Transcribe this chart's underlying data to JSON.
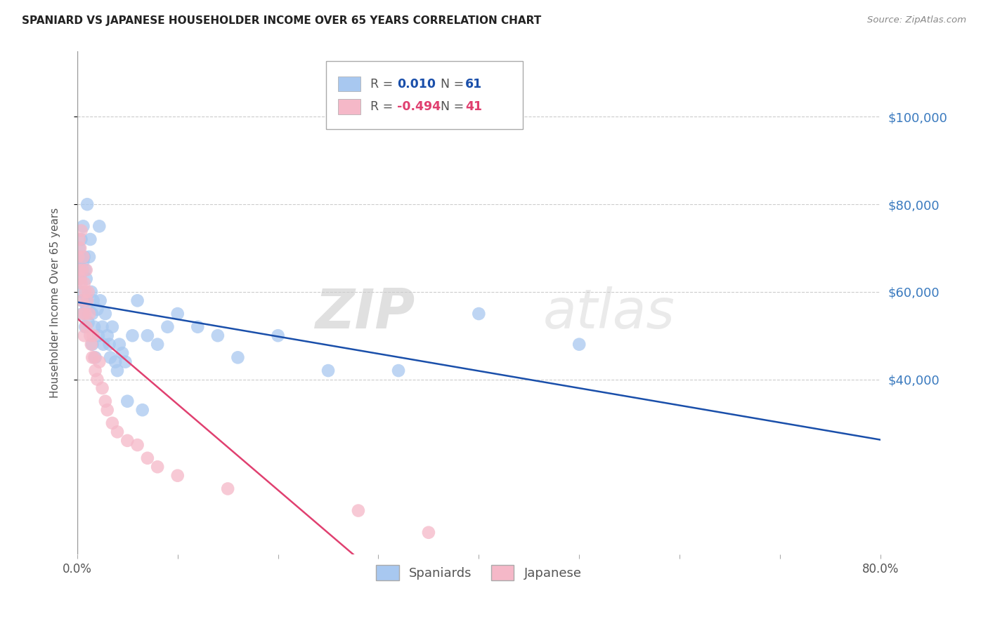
{
  "title": "SPANIARD VS JAPANESE HOUSEHOLDER INCOME OVER 65 YEARS CORRELATION CHART",
  "source": "Source: ZipAtlas.com",
  "ylabel": "Householder Income Over 65 years",
  "y_tick_labels": [
    "$40,000",
    "$60,000",
    "$80,000",
    "$100,000"
  ],
  "y_tick_values": [
    40000,
    60000,
    80000,
    100000
  ],
  "y_tick_color": "#3a7abf",
  "watermark_zip": "ZIP",
  "watermark_atlas": "atlas",
  "spaniard_color": "#a8c8f0",
  "japanese_color": "#f5b8c8",
  "trend_spaniard_color": "#1a4faa",
  "trend_japanese_color": "#e04070",
  "spaniard_x": [
    0.001,
    0.001,
    0.002,
    0.002,
    0.003,
    0.003,
    0.004,
    0.004,
    0.005,
    0.005,
    0.005,
    0.006,
    0.006,
    0.007,
    0.008,
    0.008,
    0.009,
    0.009,
    0.01,
    0.01,
    0.011,
    0.012,
    0.013,
    0.014,
    0.015,
    0.015,
    0.016,
    0.017,
    0.018,
    0.02,
    0.021,
    0.022,
    0.023,
    0.025,
    0.026,
    0.028,
    0.03,
    0.032,
    0.033,
    0.035,
    0.038,
    0.04,
    0.042,
    0.045,
    0.048,
    0.05,
    0.055,
    0.06,
    0.065,
    0.07,
    0.08,
    0.09,
    0.1,
    0.12,
    0.14,
    0.16,
    0.2,
    0.25,
    0.32,
    0.4,
    0.5
  ],
  "spaniard_y": [
    67000,
    65000,
    70000,
    66000,
    68000,
    63000,
    72000,
    60000,
    65000,
    58000,
    55000,
    75000,
    67000,
    68000,
    65000,
    52000,
    63000,
    57000,
    80000,
    58000,
    53000,
    68000,
    72000,
    60000,
    55000,
    48000,
    58000,
    52000,
    45000,
    56000,
    50000,
    75000,
    58000,
    52000,
    48000,
    55000,
    50000,
    48000,
    45000,
    52000,
    44000,
    42000,
    48000,
    46000,
    44000,
    35000,
    50000,
    58000,
    33000,
    50000,
    48000,
    52000,
    55000,
    52000,
    50000,
    45000,
    50000,
    42000,
    42000,
    55000,
    48000
  ],
  "japanese_x": [
    0.001,
    0.002,
    0.002,
    0.003,
    0.003,
    0.004,
    0.004,
    0.005,
    0.005,
    0.006,
    0.006,
    0.007,
    0.007,
    0.008,
    0.008,
    0.009,
    0.009,
    0.01,
    0.011,
    0.012,
    0.013,
    0.014,
    0.015,
    0.016,
    0.017,
    0.018,
    0.02,
    0.022,
    0.025,
    0.028,
    0.03,
    0.035,
    0.04,
    0.05,
    0.06,
    0.07,
    0.08,
    0.1,
    0.15,
    0.28,
    0.35
  ],
  "japanese_y": [
    68000,
    72000,
    65000,
    70000,
    63000,
    74000,
    62000,
    65000,
    58000,
    68000,
    55000,
    62000,
    50000,
    60000,
    55000,
    52000,
    65000,
    58000,
    60000,
    55000,
    50000,
    48000,
    45000,
    50000,
    45000,
    42000,
    40000,
    44000,
    38000,
    35000,
    33000,
    30000,
    28000,
    26000,
    25000,
    22000,
    20000,
    18000,
    15000,
    10000,
    5000
  ],
  "xlim": [
    0.0,
    0.8
  ],
  "ylim": [
    0,
    115000
  ],
  "background_color": "#ffffff",
  "grid_color": "#cccccc",
  "r_spaniard": "0.010",
  "n_spaniard": "61",
  "r_japanese": "-0.494",
  "n_japanese": "41"
}
